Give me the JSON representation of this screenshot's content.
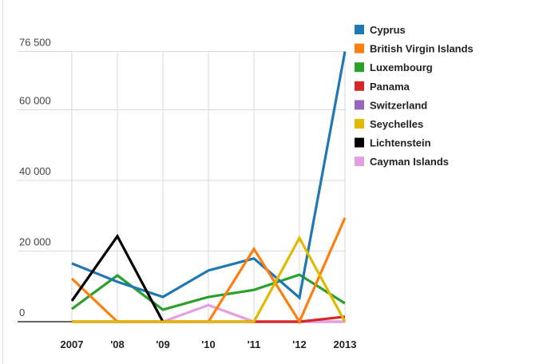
{
  "chart_data": {
    "type": "line",
    "title": "",
    "xlabel": "",
    "ylabel": "",
    "categories": [
      "2007",
      "'08",
      "'09",
      "'10",
      "'11",
      "'12",
      "2013"
    ],
    "yticks": [
      {
        "value": 0,
        "label": "0"
      },
      {
        "value": 20000,
        "label": "20 000"
      },
      {
        "value": 40000,
        "label": "40 000"
      },
      {
        "value": 60000,
        "label": "60 000"
      },
      {
        "value": 76500,
        "label": "76 500"
      }
    ],
    "ylim": [
      0,
      76500
    ],
    "grid": true,
    "legend_position": "right",
    "series": [
      {
        "name": "Cyprus",
        "color": "#1f77b4",
        "values": [
          16500,
          11300,
          7000,
          14500,
          17900,
          6800,
          76500
        ]
      },
      {
        "name": "British Virgin Islands",
        "color": "#ff7f0e",
        "values": [
          12200,
          0,
          0,
          0,
          20600,
          0,
          29400
        ]
      },
      {
        "name": "Luxembourg",
        "color": "#2ca02c",
        "values": [
          3600,
          13100,
          3400,
          7000,
          9000,
          13300,
          5200
        ]
      },
      {
        "name": "Panama",
        "color": "#d62728",
        "values": [
          0,
          0,
          0,
          0,
          0,
          0,
          1400
        ]
      },
      {
        "name": "Switzerland",
        "color": "#9467bd",
        "values": [
          0,
          0,
          0,
          0,
          0,
          0,
          0
        ]
      },
      {
        "name": "Seychelles",
        "color": "#e2b800",
        "values": [
          0,
          0,
          0,
          0,
          0,
          23700,
          0
        ]
      },
      {
        "name": "Lichtenstein",
        "color": "#000000",
        "values": [
          5900,
          24200,
          0,
          null,
          null,
          null,
          null
        ]
      },
      {
        "name": "Cayman Islands",
        "color": "#e49fe0",
        "values": [
          null,
          null,
          0,
          4700,
          0,
          0,
          0
        ]
      }
    ],
    "draw_order": [
      "Switzerland",
      "Cayman Islands",
      "Panama",
      "Luxembourg",
      "Cyprus",
      "British Virgin Islands",
      "Lichtenstein",
      "Seychelles"
    ]
  }
}
